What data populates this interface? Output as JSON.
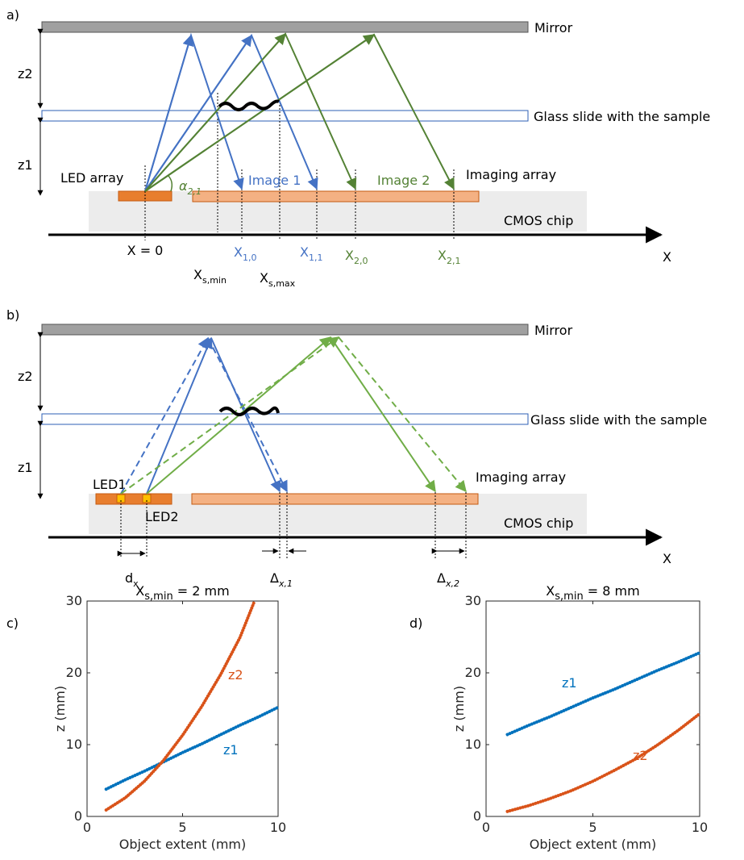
{
  "diagram_a": {
    "label": "a)",
    "mirror": "Mirror",
    "z2": "z2",
    "glass": "Glass slide with the sample",
    "z1": "z1",
    "led_array": "LED array",
    "image1": "Image 1",
    "image2": "Image 2",
    "imaging_array": "Imaging array",
    "cmos": "CMOS chip",
    "x_zero": "X = 0",
    "axis": "X",
    "alpha": {
      "main": "α",
      "sub": "2,1"
    },
    "x10": {
      "main": "X",
      "sub": "1,0"
    },
    "x11": {
      "main": "X",
      "sub": "1,1"
    },
    "x20": {
      "main": "X",
      "sub": "2,0"
    },
    "x21": {
      "main": "X",
      "sub": "2,1"
    },
    "xsmin": {
      "main": "X",
      "sub": "s,min"
    },
    "xsmax": {
      "main": "X",
      "sub": "s,max"
    }
  },
  "diagram_b": {
    "label": "b)",
    "mirror": "Mirror",
    "z2": "z2",
    "glass": "Glass slide with the sample",
    "z1": "z1",
    "led1": "LED1",
    "led2": "LED2",
    "imaging_array": "Imaging array",
    "cmos": "CMOS chip",
    "axis": "X",
    "dx": {
      "main": "d",
      "sub": "x"
    },
    "delta1": {
      "main": "Δ",
      "sub": "x,1"
    },
    "delta2": {
      "main": "Δ",
      "sub": "x,2"
    }
  },
  "chart_data": [
    {
      "type": "line",
      "panel_label": "c)",
      "title": {
        "main": "X",
        "sub": "s,min",
        "rest": " = 2 mm"
      },
      "x": [
        1,
        2,
        3,
        4,
        5,
        6,
        7,
        8,
        8.75,
        9,
        10
      ],
      "series": [
        {
          "name": "z1",
          "color": "#0072bd",
          "values": [
            3.8,
            5.1,
            6.3,
            7.6,
            8.9,
            10.1,
            11.4,
            12.7,
            13.6,
            13.9,
            15.2
          ]
        },
        {
          "name": "z2",
          "color": "#d95319",
          "values": [
            0.9,
            2.6,
            4.9,
            7.8,
            11.3,
            15.3,
            19.8,
            24.9,
            29.9,
            null,
            null
          ]
        }
      ],
      "xlabel": "Object extent (mm)",
      "ylabel": "z (mm)",
      "xlim": [
        0,
        10
      ],
      "ylim": [
        0,
        30
      ],
      "xticks": [
        0,
        5,
        10
      ],
      "yticks": [
        0,
        10,
        20,
        30
      ]
    },
    {
      "type": "line",
      "panel_label": "d)",
      "title": {
        "main": "X",
        "sub": "s,min",
        "rest": " = 8 mm"
      },
      "x": [
        1,
        2,
        3,
        4,
        5,
        6,
        7,
        8,
        9,
        10
      ],
      "series": [
        {
          "name": "z1",
          "color": "#0072bd",
          "values": [
            11.4,
            12.7,
            13.9,
            15.2,
            16.5,
            17.7,
            19.0,
            20.3,
            21.5,
            22.8
          ]
        },
        {
          "name": "z2",
          "color": "#d95319",
          "values": [
            0.7,
            1.5,
            2.5,
            3.6,
            4.9,
            6.4,
            8.0,
            9.9,
            12.0,
            14.3
          ]
        }
      ],
      "xlabel": "Object extent (mm)",
      "ylabel": "z (mm)",
      "xlim": [
        0,
        10
      ],
      "ylim": [
        0,
        30
      ],
      "xticks": [
        0,
        5,
        10
      ],
      "yticks": [
        0,
        10,
        20,
        30
      ]
    }
  ]
}
